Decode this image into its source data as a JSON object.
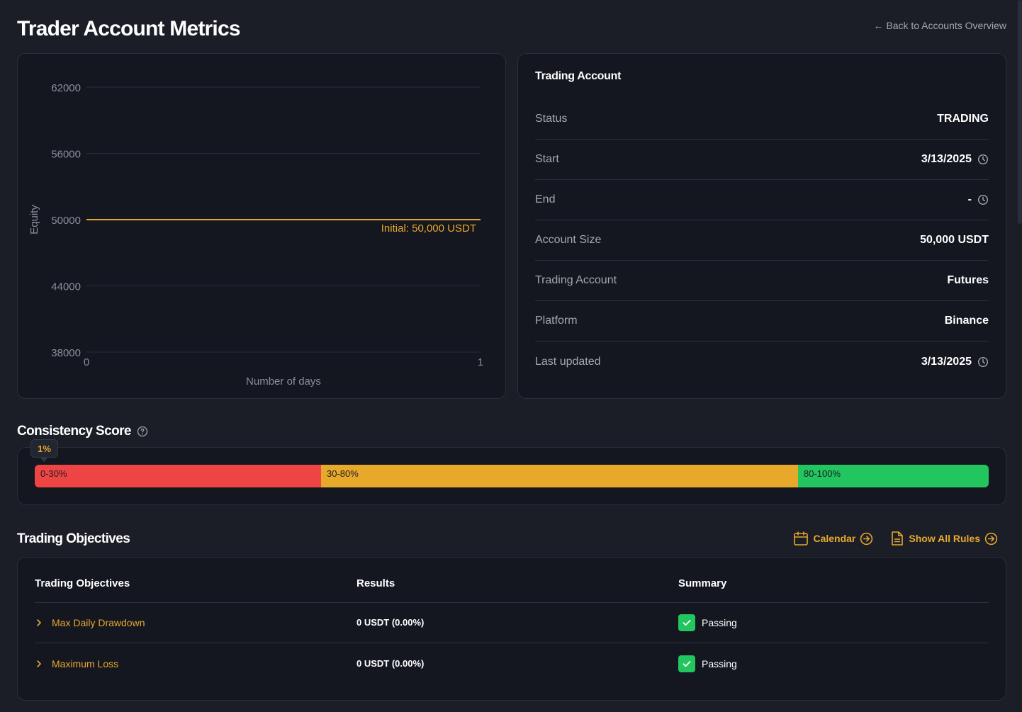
{
  "header": {
    "title": "Trader Account Metrics",
    "back_link": "← Back to Accounts Overview"
  },
  "chart_data": {
    "type": "line",
    "ylabel": "Equity",
    "xlabel": "Number of days",
    "y_ticks": [
      "62000",
      "56000",
      "50000",
      "44000",
      "38000"
    ],
    "x_ticks": [
      "0",
      "1"
    ],
    "ylim": [
      38000,
      62000
    ],
    "xlim": [
      0,
      1
    ],
    "grid": true,
    "series": [
      {
        "x": [
          0,
          1
        ],
        "values": [
          50000,
          50000
        ],
        "color": "#e8a92b"
      }
    ],
    "annotation": "Initial: 50,000 USDT",
    "colors": {
      "grid": "#2a2e38",
      "line": "#e8a92b",
      "tick": "#8b8f99"
    }
  },
  "account": {
    "title": "Trading Account",
    "rows": [
      {
        "label": "Status",
        "value": "TRADING",
        "icon": ""
      },
      {
        "label": "Start",
        "value": "3/13/2025",
        "icon": "clock-icon"
      },
      {
        "label": "End",
        "value": "-",
        "icon": "clock-icon"
      },
      {
        "label": "Account Size",
        "value": "50,000 USDT",
        "icon": ""
      },
      {
        "label": "Trading Account",
        "value": "Futures",
        "icon": ""
      },
      {
        "label": "Platform",
        "value": "Binance",
        "icon": ""
      },
      {
        "label": "Last updated",
        "value": "3/13/2025",
        "icon": "clock-icon"
      }
    ]
  },
  "consistency": {
    "title": "Consistency Score",
    "score": "1%",
    "score_value": 0.01,
    "segments": [
      {
        "label": "0-30%",
        "color": "#ef4444"
      },
      {
        "label": "30-80%",
        "color": "#e8a92b"
      },
      {
        "label": "80-100%",
        "color": "#22c55e"
      }
    ]
  },
  "objectives": {
    "title": "Trading Objectives",
    "calendar_label": "Calendar",
    "rules_label": "Show All Rules",
    "columns": [
      "Trading Objectives",
      "Results",
      "Summary"
    ],
    "rows": [
      {
        "name": "Max Daily Drawdown",
        "result": "0 USDT (0.00%)",
        "summary": "Passing"
      },
      {
        "name": "Maximum Loss",
        "result": "0 USDT (0.00%)",
        "summary": "Passing"
      }
    ]
  },
  "colors": {
    "accent": "#e8a92b",
    "success": "#22c55e",
    "danger": "#ef4444"
  }
}
